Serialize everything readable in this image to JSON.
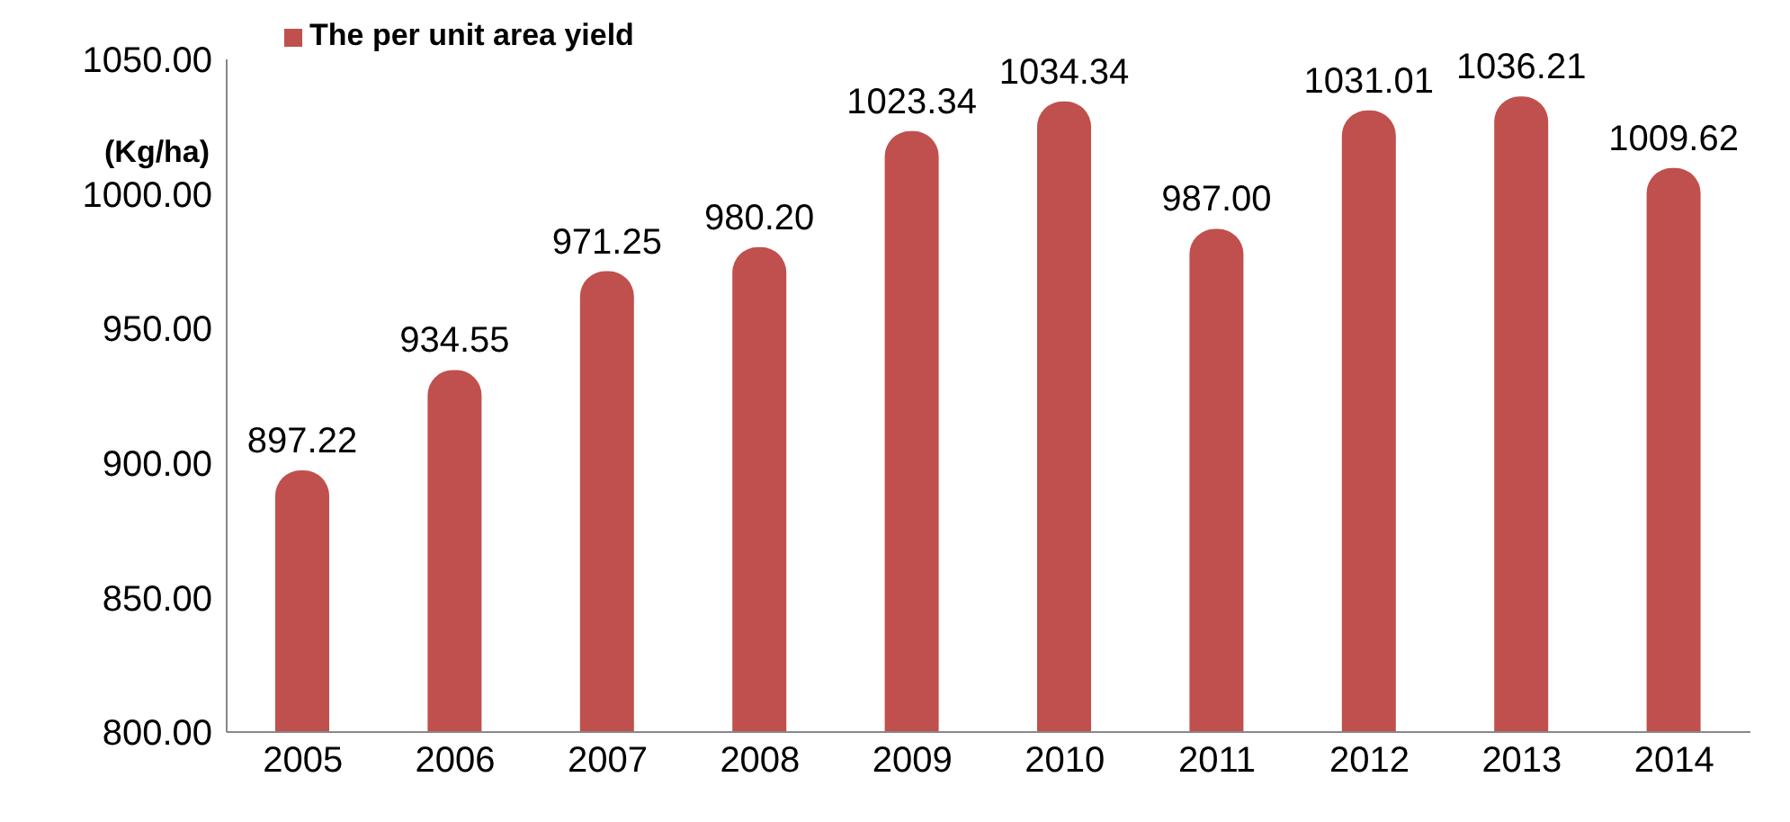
{
  "chart_data": {
    "type": "bar",
    "ylabel": "(Kg/ha)",
    "categories": [
      "2005",
      "2006",
      "2007",
      "2008",
      "2009",
      "2010",
      "2011",
      "2012",
      "2013",
      "2014"
    ],
    "series": [
      {
        "name": "The per unit area yield",
        "color": "#c0504d",
        "values": [
          897.22,
          934.55,
          971.25,
          980.2,
          1023.34,
          1034.34,
          987,
          1031.01,
          1036.21,
          1009.62
        ],
        "value_labels": [
          "897.22",
          "934.55",
          "971.25",
          "980.20",
          "1023.34",
          "1034.34",
          "987.00",
          "1031.01",
          "1036.21",
          "1009.62"
        ]
      }
    ],
    "ylim": [
      800,
      1050
    ],
    "yticks": [
      {
        "value": 800,
        "label": "800.00"
      },
      {
        "value": 850,
        "label": "850.00"
      },
      {
        "value": 900,
        "label": "900.00"
      },
      {
        "value": 950,
        "label": "950.00"
      },
      {
        "value": 1000,
        "label": "1000.00"
      },
      {
        "value": 1050,
        "label": "1050.00"
      }
    ],
    "grid": false,
    "legend": "top left"
  }
}
